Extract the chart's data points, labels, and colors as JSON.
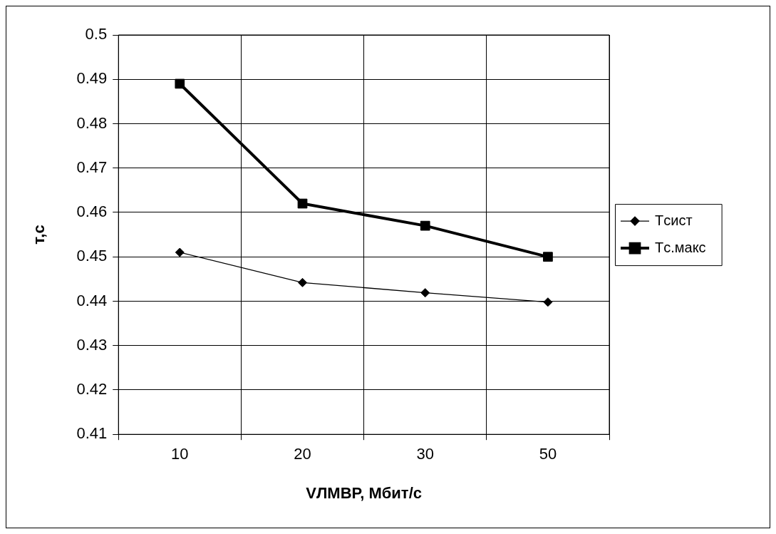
{
  "chart_data": {
    "type": "line",
    "xlabel": "VЛМВР, Мбит/с",
    "ylabel": "т,с",
    "categories": [
      "10",
      "20",
      "30",
      "50"
    ],
    "series": [
      {
        "name": "Tсист",
        "color": "#000000",
        "marker": "diamond",
        "values": [
          0.451,
          0.4442,
          0.4419,
          0.4398
        ]
      },
      {
        "name": "Tс.макс",
        "color": "#000000",
        "marker": "square",
        "values": [
          0.489,
          0.462,
          0.457,
          0.45
        ]
      }
    ],
    "ylim": [
      0.41,
      0.5
    ],
    "yticks": [
      0.41,
      0.42,
      0.43,
      0.44,
      0.45,
      0.46,
      0.47,
      0.48,
      0.49,
      0.5
    ],
    "grid": true,
    "legend": "right",
    "line_style": "solid"
  }
}
